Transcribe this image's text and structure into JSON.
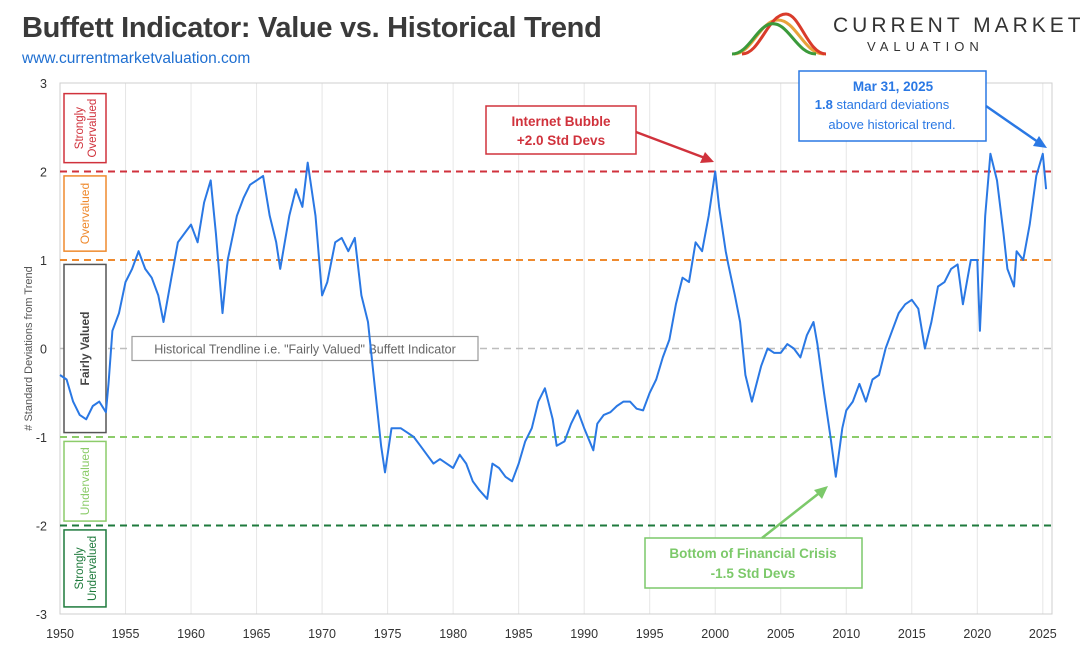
{
  "header": {
    "title": "Buffett Indicator: Value vs. Historical Trend",
    "url": "www.currentmarketvaluation.com"
  },
  "logo": {
    "line1": "CURRENT MARKET",
    "line2": "VALUATION",
    "colors": [
      "#e8a23b",
      "#d93b2b",
      "#3b9a3b"
    ]
  },
  "chart_data": {
    "type": "line",
    "ylabel": "# Standard Deviations from Trend",
    "xlim": [
      1950,
      2025.7
    ],
    "ylim": [
      -3,
      3
    ],
    "x_ticks": [
      "1950",
      "1955",
      "1960",
      "1965",
      "1970",
      "1975",
      "1980",
      "1985",
      "1990",
      "1995",
      "2000",
      "2005",
      "2010",
      "2015",
      "2020",
      "2025"
    ],
    "y_ticks": [
      "3",
      "2",
      "1",
      "0",
      "-1",
      "-2",
      "-3"
    ],
    "grid": "vertical",
    "bands": [
      {
        "label": "Strongly Overvalued",
        "y": 2,
        "color": "#d0323c"
      },
      {
        "label": "Overvalued",
        "y": 1,
        "color": "#ef8a2e"
      },
      {
        "label": "Fairly Valued",
        "y": 0,
        "color": "#555555"
      },
      {
        "label": "Undervalued",
        "y": -1,
        "color": "#8ccc6a"
      },
      {
        "label": "Strongly Undervalued",
        "y": -2,
        "color": "#1e7a3c"
      }
    ],
    "trend_label": "Historical Trendline i.e. \"Fairly Valued\" Buffett Indicator",
    "line_color": "#2a78e4",
    "annotations": {
      "bubble": {
        "line1": "Internet Bubble",
        "line2": "+2.0 Std Devs",
        "color": "#d0323c"
      },
      "crisis": {
        "line1": "Bottom of Financial Crisis",
        "line2": "-1.5 Std Devs",
        "color": "#7cc96a"
      },
      "current": {
        "date": "Mar 31, 2025",
        "value": "1.8",
        "line2": "standard deviations",
        "line3": "above historical trend.",
        "color": "#2a78e4"
      }
    },
    "series": [
      {
        "x": [
          1950,
          1950.5,
          1951,
          1951.5,
          1952,
          1952.5,
          1953,
          1953.5,
          1953.7,
          1954,
          1954.5,
          1955,
          1955.5,
          1956,
          1956.5,
          1957,
          1957.5,
          1957.9,
          1958.5,
          1959,
          1959.5,
          1960,
          1960.5,
          1961,
          1961.5,
          1961.9,
          1962.4,
          1962.8,
          1963.5,
          1964,
          1964.5,
          1965,
          1965.5,
          1966,
          1966.5,
          1966.8,
          1967.5,
          1968,
          1968.5,
          1968.9,
          1969.5,
          1970,
          1970.4,
          1971,
          1971.5,
          1972,
          1972.5,
          1973,
          1973.5,
          1974,
          1974.5,
          1974.8,
          1975.3,
          1976,
          1976.5,
          1977,
          1977.5,
          1978,
          1978.5,
          1979,
          1979.5,
          1980,
          1980.5,
          1981,
          1981.5,
          1982,
          1982.6,
          1983,
          1983.5,
          1984,
          1984.5,
          1985,
          1985.5,
          1986,
          1986.5,
          1987,
          1987.6,
          1987.9,
          1988.5,
          1989,
          1989.5,
          1990,
          1990.7,
          1991,
          1991.5,
          1992,
          1992.5,
          1993,
          1993.5,
          1994,
          1994.5,
          1995,
          1995.5,
          1996,
          1996.5,
          1997,
          1997.5,
          1998,
          1998.5,
          1999,
          1999.5,
          2000,
          2000.3,
          2000.8,
          2001,
          2001.5,
          2001.9,
          2002.3,
          2002.8,
          2003.5,
          2004,
          2004.5,
          2005,
          2005.5,
          2006,
          2006.5,
          2007,
          2007.5,
          2007.8,
          2008.3,
          2008.8,
          2009.2,
          2009.7,
          2010,
          2010.5,
          2011,
          2011.5,
          2012,
          2012.5,
          2013,
          2013.5,
          2014,
          2014.5,
          2015,
          2015.5,
          2016,
          2016.5,
          2017,
          2017.5,
          2018,
          2018.5,
          2018.9,
          2019.5,
          2020,
          2020.2,
          2020.6,
          2021,
          2021.5,
          2022,
          2022.3,
          2022.8,
          2023,
          2023.5,
          2024,
          2024.5,
          2025,
          2025.25
        ],
        "y": [
          -0.3,
          -0.35,
          -0.6,
          -0.75,
          -0.8,
          -0.65,
          -0.6,
          -0.72,
          -0.4,
          0.2,
          0.4,
          0.75,
          0.9,
          1.1,
          0.9,
          0.8,
          0.6,
          0.3,
          0.8,
          1.2,
          1.3,
          1.4,
          1.2,
          1.65,
          1.9,
          1.3,
          0.4,
          1.0,
          1.5,
          1.7,
          1.85,
          1.9,
          1.95,
          1.5,
          1.2,
          0.9,
          1.5,
          1.8,
          1.6,
          2.1,
          1.5,
          0.6,
          0.75,
          1.2,
          1.25,
          1.1,
          1.25,
          0.6,
          0.3,
          -0.4,
          -1.1,
          -1.4,
          -0.9,
          -0.9,
          -0.95,
          -1.0,
          -1.1,
          -1.2,
          -1.3,
          -1.25,
          -1.3,
          -1.35,
          -1.2,
          -1.3,
          -1.5,
          -1.6,
          -1.7,
          -1.3,
          -1.35,
          -1.45,
          -1.5,
          -1.3,
          -1.05,
          -0.9,
          -0.6,
          -0.45,
          -0.8,
          -1.1,
          -1.05,
          -0.85,
          -0.7,
          -0.9,
          -1.15,
          -0.85,
          -0.75,
          -0.72,
          -0.65,
          -0.6,
          -0.6,
          -0.68,
          -0.7,
          -0.5,
          -0.35,
          -0.1,
          0.1,
          0.5,
          0.8,
          0.75,
          1.2,
          1.1,
          1.5,
          2.0,
          1.6,
          1.1,
          0.95,
          0.6,
          0.3,
          -0.3,
          -0.6,
          -0.2,
          0.0,
          -0.05,
          -0.05,
          0.05,
          0.0,
          -0.1,
          0.15,
          0.3,
          0.05,
          -0.5,
          -1.0,
          -1.45,
          -0.9,
          -0.7,
          -0.6,
          -0.4,
          -0.6,
          -0.35,
          -0.3,
          0.0,
          0.2,
          0.4,
          0.5,
          0.55,
          0.45,
          0.0,
          0.3,
          0.7,
          0.75,
          0.9,
          0.95,
          0.5,
          1.0,
          1.0,
          0.2,
          1.5,
          2.2,
          1.9,
          1.3,
          0.9,
          0.7,
          1.1,
          1.0,
          1.4,
          1.95,
          2.2,
          1.8
        ]
      }
    ]
  }
}
